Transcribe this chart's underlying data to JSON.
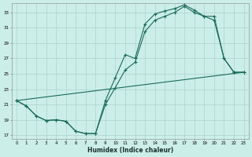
{
  "xlabel": "Humidex (Indice chaleur)",
  "bg_color": "#cceee8",
  "grid_color": "#aad4cc",
  "line_color": "#1a6b5a",
  "xlim": [
    -0.5,
    23.5
  ],
  "ylim": [
    16.5,
    34.2
  ],
  "xtick_vals": [
    0,
    1,
    2,
    3,
    4,
    5,
    6,
    7,
    8,
    9,
    10,
    11,
    12,
    13,
    14,
    15,
    16,
    17,
    18,
    19,
    20,
    21,
    22,
    23
  ],
  "ytick_vals": [
    17,
    19,
    21,
    23,
    25,
    27,
    29,
    31,
    33
  ],
  "curve1_x": [
    0,
    1,
    2,
    3,
    4,
    5,
    6,
    7,
    8,
    9,
    10,
    11,
    12,
    13,
    14,
    15,
    16,
    17,
    18,
    19,
    20,
    21,
    22,
    23
  ],
  "curve1_y": [
    21.5,
    20.8,
    19.5,
    18.9,
    19.0,
    18.8,
    17.5,
    17.2,
    17.2,
    21.0,
    23.2,
    25.5,
    26.5,
    30.5,
    32.0,
    32.5,
    33.0,
    33.8,
    33.0,
    32.5,
    32.0,
    27.0,
    25.2,
    25.2
  ],
  "curve2_x": [
    0,
    1,
    2,
    3,
    4,
    5,
    6,
    7,
    8,
    9,
    10,
    11,
    12,
    13,
    14,
    15,
    16,
    17,
    18,
    19,
    20,
    21,
    22,
    23
  ],
  "curve2_y": [
    21.5,
    20.8,
    19.5,
    18.9,
    19.0,
    18.8,
    17.5,
    17.2,
    17.2,
    21.5,
    24.5,
    27.5,
    27.0,
    31.5,
    32.8,
    33.2,
    33.5,
    34.0,
    33.3,
    32.5,
    32.5,
    27.0,
    25.2,
    25.2
  ],
  "curve3_x": [
    0,
    23
  ],
  "curve3_y": [
    21.5,
    25.2
  ],
  "marker_indices_c1": [
    0,
    1,
    2,
    3,
    4,
    5,
    6,
    7,
    8,
    9,
    10,
    11,
    12,
    13,
    14,
    15,
    16,
    17,
    18,
    19,
    20,
    21,
    22,
    23
  ],
  "marker_indices_c2": [
    0,
    1,
    2,
    3,
    4,
    5,
    6,
    7,
    8,
    9,
    10,
    11,
    12,
    13,
    14,
    15,
    16,
    17,
    18,
    19,
    20,
    21,
    22,
    23
  ]
}
